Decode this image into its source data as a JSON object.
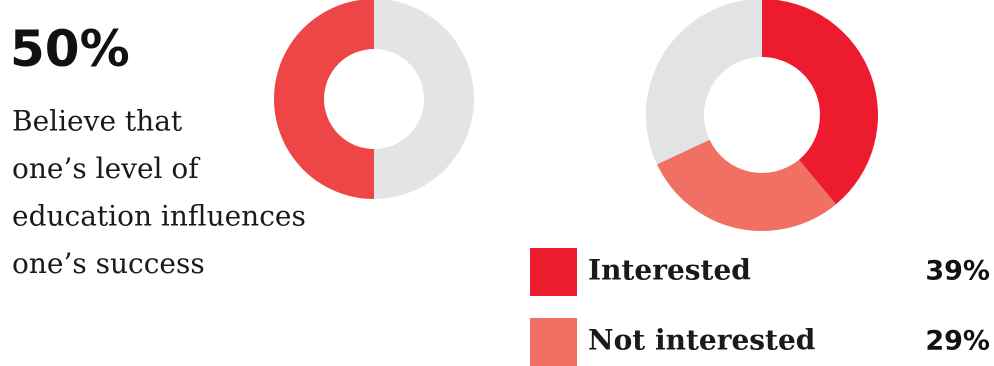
{
  "chart_data": [
    {
      "type": "donut",
      "categories": [
        null,
        null
      ],
      "values": [
        50,
        50
      ],
      "value_labels": [
        null,
        "50%"
      ],
      "colors": [
        "#e3e4e6",
        "#ee4646"
      ],
      "description": [
        "Believe that",
        "one’s level of",
        "education influences",
        "one’s success"
      ]
    },
    {
      "type": "donut",
      "categories": [
        "Interested",
        "Not interested",
        null
      ],
      "values": [
        39,
        29,
        32
      ],
      "value_labels": [
        "39%",
        "29%",
        null
      ],
      "colors": [
        "#ec1c2e",
        "#f07064",
        "#e2e3e5"
      ]
    }
  ]
}
